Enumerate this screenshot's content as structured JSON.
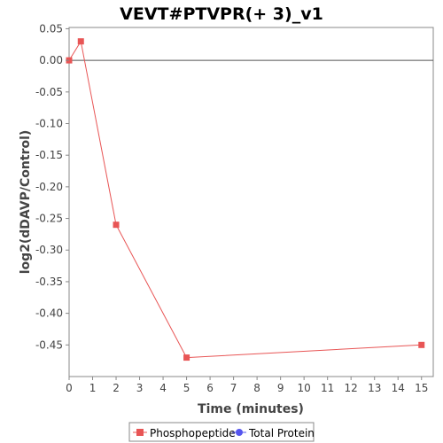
{
  "chart_data": {
    "type": "line",
    "title": "VEVT#PTVPR(+ 3)_v1",
    "xlabel": "Time (minutes)",
    "ylabel": "log2(dDAVP/Control)",
    "xlim": [
      0,
      15.5
    ],
    "ylim": [
      -0.5,
      0.052
    ],
    "x_ticks": [
      0,
      1,
      2,
      3,
      4,
      5,
      6,
      7,
      8,
      9,
      10,
      11,
      12,
      13,
      14,
      15
    ],
    "x_tick_labels": [
      "0",
      "1",
      "2",
      "3",
      "4",
      "5",
      "6",
      "7",
      "8",
      "9",
      "10",
      "11",
      "12",
      "13",
      "14",
      "15"
    ],
    "y_ticks": [
      0.05,
      0.0,
      -0.05,
      -0.1,
      -0.15,
      -0.2,
      -0.25,
      -0.3,
      -0.35,
      -0.4,
      -0.45
    ],
    "y_tick_labels": [
      "0.05",
      "0.00",
      "-0.05",
      "-0.10",
      "-0.15",
      "-0.20",
      "-0.25",
      "-0.30",
      "-0.35",
      "-0.40",
      "-0.45"
    ],
    "grid": false,
    "zero_line": true,
    "legend_position": "bottom",
    "series": [
      {
        "name": "Phosphopeptide",
        "color": "#e85555",
        "marker": "square",
        "x": [
          0,
          0.5,
          2,
          5,
          15
        ],
        "y": [
          0.0,
          0.03,
          -0.26,
          -0.47,
          -0.45
        ]
      },
      {
        "name": "Total Protein",
        "color": "#5555ee",
        "marker": "circle",
        "x": [],
        "y": []
      }
    ]
  }
}
